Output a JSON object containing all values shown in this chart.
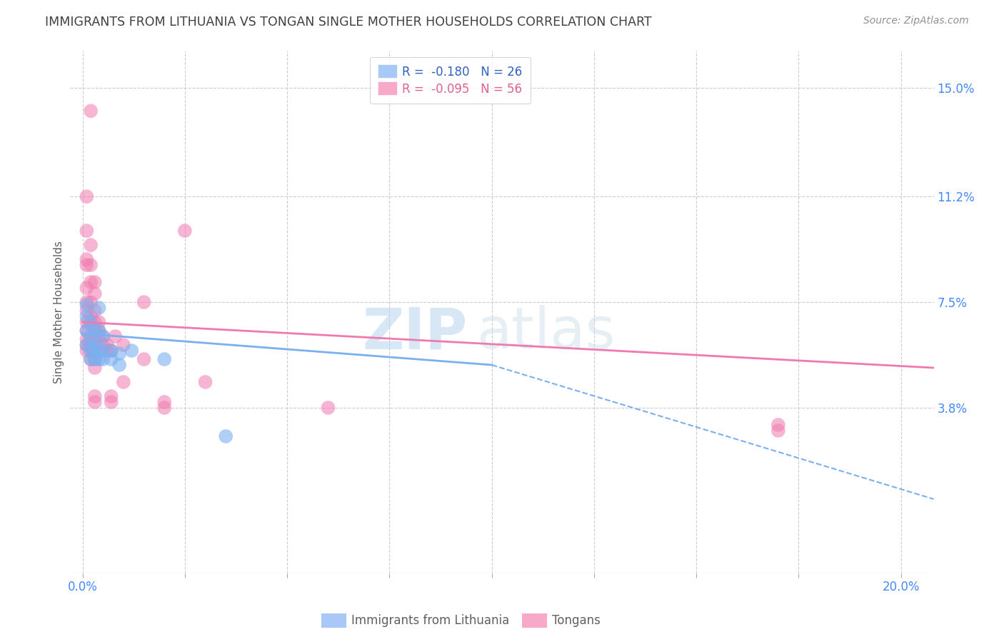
{
  "title": "IMMIGRANTS FROM LITHUANIA VS TONGAN SINGLE MOTHER HOUSEHOLDS CORRELATION CHART",
  "source": "Source: ZipAtlas.com",
  "xlabel_ticks_pos": [
    0.0,
    0.025,
    0.05,
    0.075,
    0.1,
    0.125,
    0.15,
    0.175,
    0.2
  ],
  "xlabel_labels": [
    "0.0%",
    "",
    "",
    "",
    "",
    "",
    "",
    "",
    "20.0%"
  ],
  "ylabel": "Single Mother Households",
  "ylabel_ticks": [
    "3.8%",
    "7.5%",
    "11.2%",
    "15.0%"
  ],
  "ylabel_tick_vals": [
    0.038,
    0.075,
    0.112,
    0.15
  ],
  "xlim": [
    -0.003,
    0.208
  ],
  "ylim": [
    -0.02,
    0.163
  ],
  "legend_label_blue": "R =  -0.180   N = 26",
  "legend_label_pink": "R =  -0.095   N = 56",
  "watermark_zip": "ZIP",
  "watermark_atlas": "atlas",
  "blue_color": "#7ab0f0",
  "pink_color": "#f07ab0",
  "blue_scatter": [
    [
      0.001,
      0.074
    ],
    [
      0.001,
      0.07
    ],
    [
      0.001,
      0.065
    ],
    [
      0.001,
      0.06
    ],
    [
      0.002,
      0.068
    ],
    [
      0.002,
      0.062
    ],
    [
      0.002,
      0.058
    ],
    [
      0.002,
      0.055
    ],
    [
      0.003,
      0.065
    ],
    [
      0.003,
      0.06
    ],
    [
      0.003,
      0.058
    ],
    [
      0.003,
      0.055
    ],
    [
      0.004,
      0.073
    ],
    [
      0.004,
      0.065
    ],
    [
      0.004,
      0.058
    ],
    [
      0.004,
      0.055
    ],
    [
      0.005,
      0.063
    ],
    [
      0.005,
      0.058
    ],
    [
      0.005,
      0.055
    ],
    [
      0.007,
      0.058
    ],
    [
      0.007,
      0.055
    ],
    [
      0.009,
      0.057
    ],
    [
      0.009,
      0.053
    ],
    [
      0.012,
      0.058
    ],
    [
      0.02,
      0.055
    ],
    [
      0.035,
      0.028
    ]
  ],
  "pink_scatter": [
    [
      0.001,
      0.112
    ],
    [
      0.001,
      0.1
    ],
    [
      0.001,
      0.09
    ],
    [
      0.001,
      0.088
    ],
    [
      0.001,
      0.08
    ],
    [
      0.001,
      0.075
    ],
    [
      0.001,
      0.072
    ],
    [
      0.001,
      0.068
    ],
    [
      0.001,
      0.065
    ],
    [
      0.001,
      0.062
    ],
    [
      0.001,
      0.06
    ],
    [
      0.001,
      0.058
    ],
    [
      0.002,
      0.142
    ],
    [
      0.002,
      0.095
    ],
    [
      0.002,
      0.088
    ],
    [
      0.002,
      0.082
    ],
    [
      0.002,
      0.075
    ],
    [
      0.002,
      0.07
    ],
    [
      0.002,
      0.067
    ],
    [
      0.002,
      0.063
    ],
    [
      0.002,
      0.06
    ],
    [
      0.002,
      0.058
    ],
    [
      0.002,
      0.055
    ],
    [
      0.003,
      0.082
    ],
    [
      0.003,
      0.078
    ],
    [
      0.003,
      0.072
    ],
    [
      0.003,
      0.068
    ],
    [
      0.003,
      0.065
    ],
    [
      0.003,
      0.062
    ],
    [
      0.003,
      0.058
    ],
    [
      0.003,
      0.055
    ],
    [
      0.003,
      0.052
    ],
    [
      0.003,
      0.042
    ],
    [
      0.003,
      0.04
    ],
    [
      0.004,
      0.068
    ],
    [
      0.004,
      0.065
    ],
    [
      0.004,
      0.063
    ],
    [
      0.005,
      0.063
    ],
    [
      0.005,
      0.06
    ],
    [
      0.006,
      0.06
    ],
    [
      0.006,
      0.058
    ],
    [
      0.007,
      0.058
    ],
    [
      0.007,
      0.042
    ],
    [
      0.007,
      0.04
    ],
    [
      0.008,
      0.063
    ],
    [
      0.01,
      0.06
    ],
    [
      0.01,
      0.047
    ],
    [
      0.015,
      0.075
    ],
    [
      0.015,
      0.055
    ],
    [
      0.02,
      0.04
    ],
    [
      0.02,
      0.038
    ],
    [
      0.025,
      0.1
    ],
    [
      0.03,
      0.047
    ],
    [
      0.06,
      0.038
    ],
    [
      0.17,
      0.032
    ],
    [
      0.17,
      0.03
    ]
  ],
  "pink_line": {
    "x0": 0.0,
    "y0": 0.068,
    "x1": 0.208,
    "y1": 0.052
  },
  "blue_solid_line": {
    "x0": 0.0,
    "y0": 0.064,
    "x1": 0.1,
    "y1": 0.053
  },
  "blue_dashed_line": {
    "x0": 0.1,
    "y0": 0.053,
    "x1": 0.208,
    "y1": 0.006
  },
  "background_color": "#ffffff",
  "grid_color": "#cccccc",
  "title_color": "#404040",
  "axis_label_color": "#606060",
  "right_tick_color": "#4488ff",
  "bottom_label_color": "#4488ff",
  "source_color": "#909090"
}
